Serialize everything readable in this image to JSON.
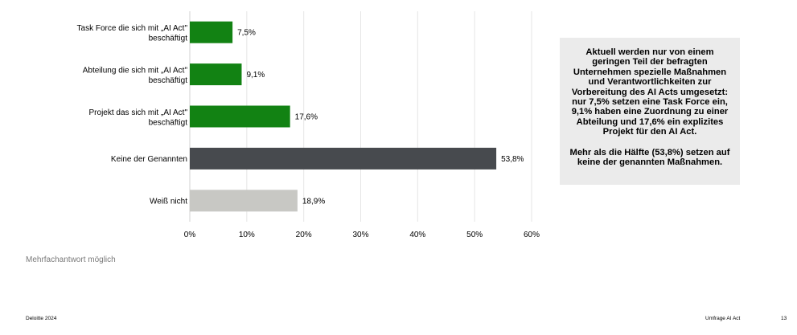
{
  "chart_data": {
    "type": "bar",
    "orientation": "horizontal",
    "categories": [
      "Task Force die sich mit „AI Act\" beschäftigt",
      "Abteilung die sich mit „AI Act\" beschäftigt",
      "Projekt das sich mit „AI Act\" beschäftigt",
      "Keine der Genannten",
      "Weiß nicht"
    ],
    "values": [
      7.5,
      9.1,
      17.6,
      53.8,
      18.9
    ],
    "value_labels": [
      "7,5%",
      "9,1%",
      "17,6%",
      "53,8%",
      "18,9%"
    ],
    "bar_colors": [
      "#128213",
      "#128213",
      "#128213",
      "#474a4e",
      "#c8c8c4"
    ],
    "xlim": [
      0,
      60
    ],
    "x_ticks": [
      0,
      10,
      20,
      30,
      40,
      50,
      60
    ],
    "x_tick_labels": [
      "0%",
      "10%",
      "20%",
      "30%",
      "40%",
      "50%",
      "60%"
    ],
    "grid": true,
    "grid_color": "#e6e6e6",
    "title": "",
    "xlabel": "",
    "ylabel": ""
  },
  "callout": {
    "paragraph1": "Aktuell werden nur von einem geringen Teil der befragten Unternehmen spezielle  Maßnahmen und Verantwortlichkeiten zur Vorbereitung des AI Acts umgesetzt: nur 7,5% setzen eine Task Force ein, 9,1% haben eine Zuordnung zu einer Abteilung und 17,6% ein explizites Projekt für den AI Act.",
    "paragraph2": "Mehr als die Hälfte (53,8%) setzen auf keine der genannten Maßnahmen.",
    "background": "#ebebeb"
  },
  "note": "Mehrfachantwort möglich",
  "footer": {
    "left": "Deloitte 2024",
    "right": "Umfrage AI Act",
    "page": "13"
  }
}
